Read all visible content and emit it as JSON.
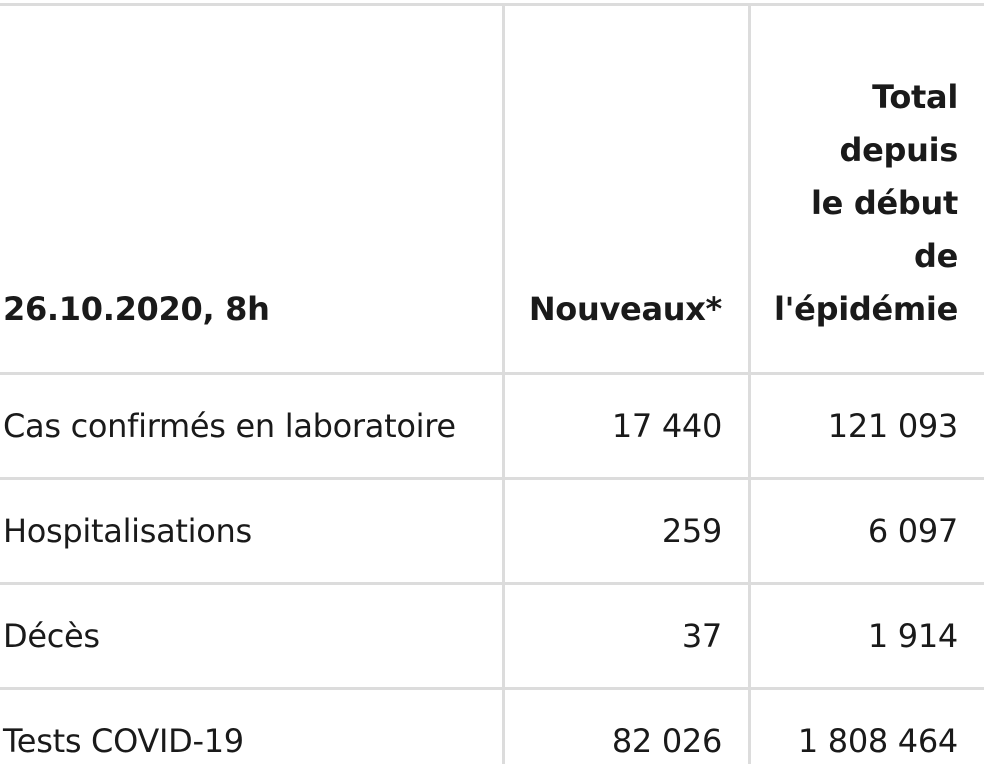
{
  "table": {
    "headers": {
      "date": "26.10.2020, 8h",
      "new": "Nouveaux*",
      "total_lines": [
        "Total",
        "depuis",
        "le début",
        "de",
        "l'épidémie"
      ]
    },
    "rows": [
      {
        "label": "Cas confirmés en laboratoire",
        "new": "17 440",
        "total": "121 093"
      },
      {
        "label": "Hospitalisations",
        "new": "259",
        "total": "6 097"
      },
      {
        "label": "Décès",
        "new": "37",
        "total": "1 914"
      },
      {
        "label": "Tests COVID-19",
        "new": "82 026",
        "total": "1 808 464"
      }
    ]
  },
  "colors": {
    "border": "#dcdcdc",
    "text": "#1a1a1a",
    "background": "#ffffff"
  }
}
